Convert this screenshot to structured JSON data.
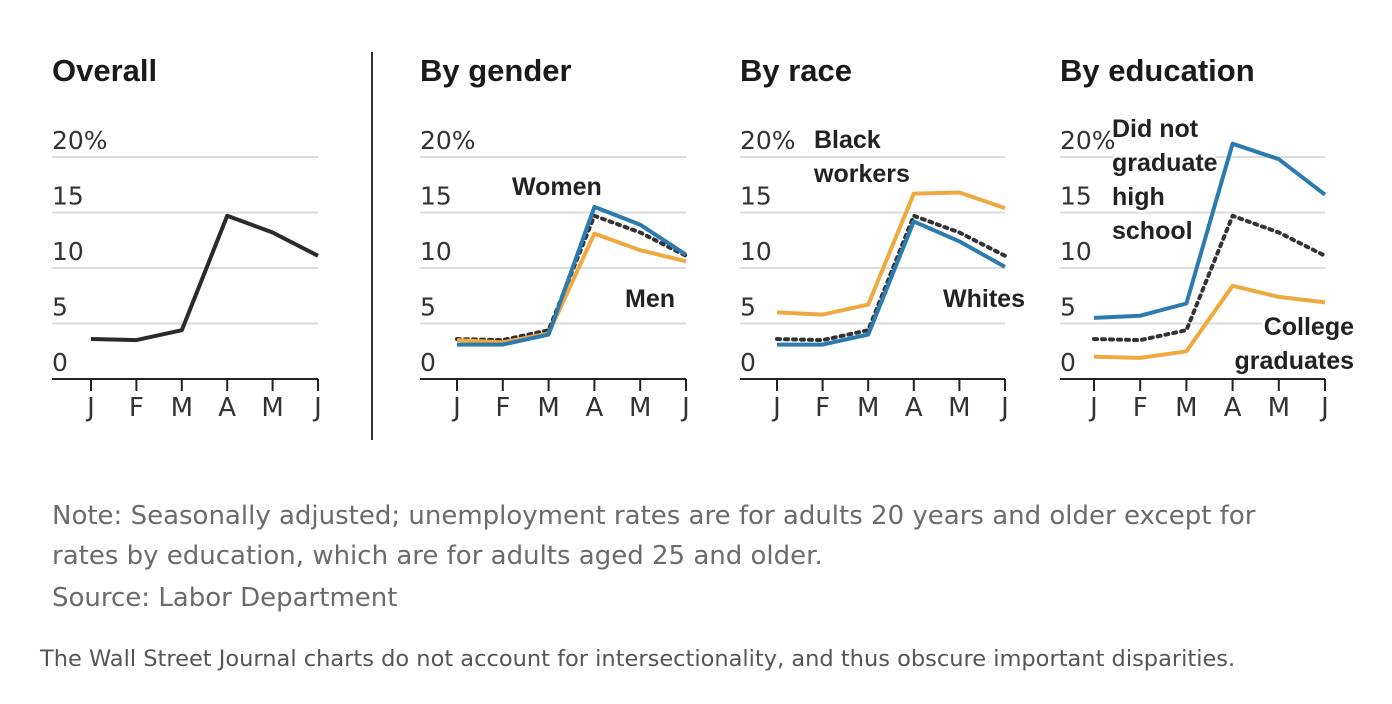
{
  "colors": {
    "overall": "#2b2b2b",
    "blue": "#2c7bb0",
    "orange": "#f0a840",
    "grid": "#dcdcdc",
    "axis": "#222222"
  },
  "chart_data": [
    {
      "type": "line",
      "title": "Overall",
      "categories": [
        "J",
        "F",
        "M",
        "A",
        "M",
        "J"
      ],
      "yticks": [
        "20%",
        "15",
        "10",
        "5",
        "0"
      ],
      "ylim": [
        0,
        20
      ],
      "series": [
        {
          "style": "overall",
          "values": [
            3.6,
            3.5,
            4.4,
            14.7,
            13.2,
            11.1
          ]
        }
      ],
      "annotations": []
    },
    {
      "type": "line",
      "title": "By gender",
      "categories": [
        "J",
        "F",
        "M",
        "A",
        "M",
        "J"
      ],
      "yticks": [
        "20%",
        "15",
        "10",
        "5",
        "0"
      ],
      "ylim": [
        0,
        20
      ],
      "series": [
        {
          "style": "overall-dotted",
          "values": [
            3.6,
            3.5,
            4.4,
            14.7,
            13.2,
            11.1
          ]
        },
        {
          "name": "Men",
          "style": "orange",
          "values": [
            3.5,
            3.3,
            4.1,
            13.1,
            11.6,
            10.6
          ]
        },
        {
          "name": "Women",
          "style": "blue",
          "values": [
            3.1,
            3.1,
            4.0,
            15.5,
            13.9,
            11.2
          ]
        }
      ],
      "annotations": [
        {
          "lines": [
            "Women"
          ]
        },
        {
          "lines": [
            "Men"
          ]
        }
      ]
    },
    {
      "type": "line",
      "title": "By race",
      "categories": [
        "J",
        "F",
        "M",
        "A",
        "M",
        "J"
      ],
      "yticks": [
        "20%",
        "15",
        "10",
        "5",
        "0"
      ],
      "ylim": [
        0,
        20
      ],
      "series": [
        {
          "style": "overall-dotted",
          "values": [
            3.6,
            3.5,
            4.4,
            14.7,
            13.2,
            11.1
          ]
        },
        {
          "name": "Black workers",
          "style": "orange",
          "values": [
            6.0,
            5.8,
            6.7,
            16.7,
            16.8,
            15.4
          ]
        },
        {
          "name": "Whites",
          "style": "blue",
          "values": [
            3.1,
            3.1,
            4.0,
            14.2,
            12.4,
            10.1
          ]
        }
      ],
      "annotations": [
        {
          "lines": [
            "Black",
            "workers"
          ]
        },
        {
          "lines": [
            "Whites"
          ]
        }
      ]
    },
    {
      "type": "line",
      "title": "By education",
      "categories": [
        "J",
        "F",
        "M",
        "A",
        "M",
        "J"
      ],
      "yticks": [
        "20%",
        "15",
        "10",
        "5",
        "0"
      ],
      "ylim": [
        0,
        20
      ],
      "series": [
        {
          "style": "overall-dotted",
          "values": [
            3.6,
            3.5,
            4.4,
            14.7,
            13.2,
            11.1
          ]
        },
        {
          "name": "College graduates",
          "style": "orange",
          "values": [
            2.0,
            1.9,
            2.5,
            8.4,
            7.4,
            6.9
          ]
        },
        {
          "name": "Did not graduate high school",
          "style": "blue",
          "values": [
            5.5,
            5.7,
            6.8,
            21.2,
            19.8,
            16.6
          ]
        }
      ],
      "annotations": [
        {
          "lines": [
            "Did not",
            "graduate",
            "high",
            "school"
          ]
        },
        {
          "lines": [
            "College",
            "graduates"
          ]
        }
      ]
    }
  ],
  "note": {
    "line1": "Note: Seasonally adjusted; unemployment rates are for adults 20 years and older except for",
    "line2": "rates by education, which are for adults aged 25 and older.",
    "source": "Source: Labor Department"
  },
  "caption": "The Wall Street Journal charts do not account for intersectionality, and thus obscure important disparities."
}
